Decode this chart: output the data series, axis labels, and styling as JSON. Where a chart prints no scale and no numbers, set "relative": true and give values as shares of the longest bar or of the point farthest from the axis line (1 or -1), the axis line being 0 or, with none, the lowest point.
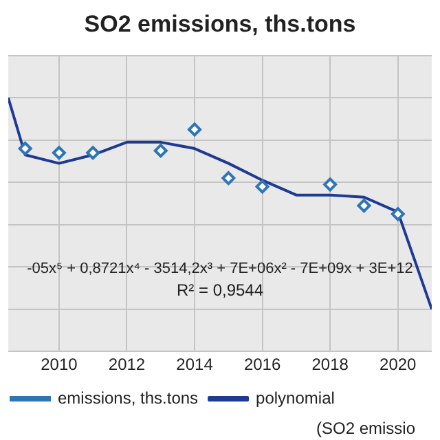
{
  "chart_data": {
    "type": "line",
    "title": "SO2 emissions, ths.tons",
    "relative": true,
    "xlim": [
      2008.5,
      2021
    ],
    "xticks": [
      2010,
      2012,
      2014,
      2016,
      2018,
      2020
    ],
    "grid": true,
    "legend": "bottom",
    "series": [
      {
        "name": "emissions, ths.tons",
        "type": "scatter",
        "marker": "diamond",
        "color": "#2e75b6",
        "x": [
          2009,
          2010,
          2011,
          2013,
          2014,
          2015,
          2016,
          2018,
          2019,
          2020
        ],
        "values": [
          0.76,
          0.74,
          0.74,
          0.75,
          0.85,
          0.62,
          0.58,
          0.59,
          0.49,
          0.45
        ]
      },
      {
        "name": "polynomial",
        "type": "line",
        "marker": "none",
        "color": "#1f3a93",
        "x": [
          2008.5,
          2009,
          2010,
          2011,
          2012,
          2013,
          2014,
          2015,
          2016,
          2017,
          2018,
          2019,
          2020,
          2021
        ],
        "values": [
          1,
          0.73,
          0.69,
          0.73,
          0.79,
          0.79,
          0.76,
          0.69,
          0.61,
          0.54,
          0.54,
          0.53,
          0.46,
          0
        ]
      }
    ],
    "annotations": [
      "-05x⁵ + 0,8721x⁴ - 3514,2x³ + 7E+06x² - 7E+09x + 3E+12",
      "R² = 0,9544",
      "(SO2 emissio"
    ]
  }
}
